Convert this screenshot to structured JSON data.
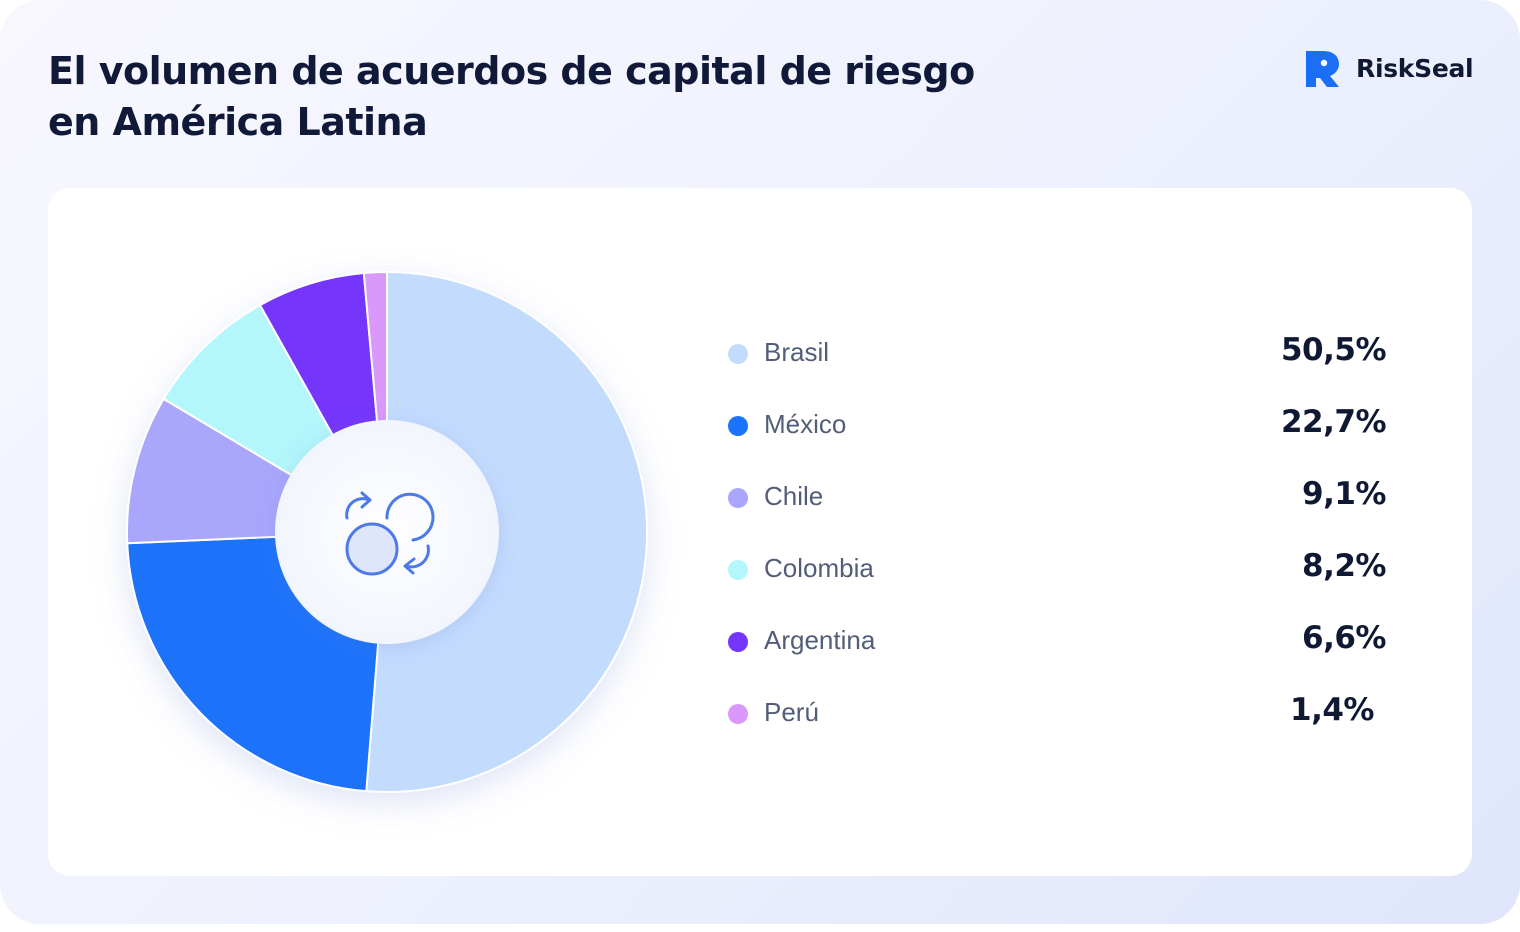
{
  "header": {
    "title_line1": "El volumen de acuerdos de capital de riesgo",
    "title_line2": "en América Latina"
  },
  "brand": {
    "name": "RiskSeal",
    "icon": "riskseal-logo-icon",
    "color": "#1a6ff5"
  },
  "center_icon": "exchange-cycle-icon",
  "chart_data": {
    "type": "pie",
    "title": "El volumen de acuerdos de capital de riesgo en América Latina",
    "donut": true,
    "legend_position": "right",
    "categories": [
      "Brasil",
      "México",
      "Chile",
      "Colombia",
      "Argentina",
      "Perú"
    ],
    "values": [
      50.5,
      22.7,
      9.1,
      8.2,
      6.6,
      1.4
    ],
    "labels": [
      "50,5%",
      "22,7%",
      "9,1%",
      "8,2%",
      "6,6%",
      "1,4%"
    ],
    "colors": [
      "#c3dbfd",
      "#1a73fa",
      "#a9a6fc",
      "#b3f6fb",
      "#7436fb",
      "#da98fb"
    ]
  }
}
